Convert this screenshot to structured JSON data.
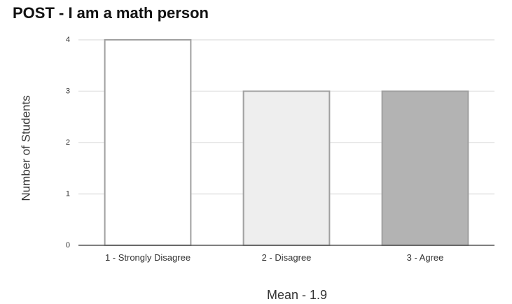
{
  "chart_data": {
    "type": "bar",
    "title": "POST - I am a math person",
    "xlabel": "Mean - 1.9",
    "ylabel": "Number of Students",
    "categories": [
      "1 - Strongly Disagree",
      "2 - Disagree",
      "3 - Agree"
    ],
    "values": [
      4,
      3,
      3
    ],
    "ylim": [
      0,
      4
    ],
    "yticks": [
      "0",
      "1",
      "2",
      "3",
      "4"
    ],
    "grid": true,
    "legend": "none",
    "colors": [
      "#ffffff",
      "#eeeeee",
      "#b3b3b3"
    ],
    "edge_color": "#a0a0a0"
  }
}
